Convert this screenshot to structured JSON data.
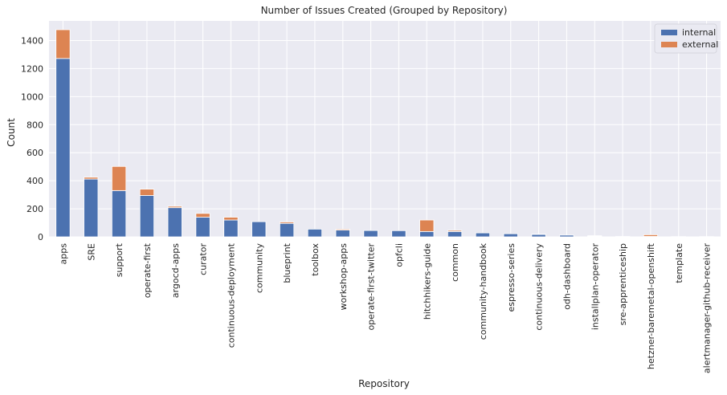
{
  "chart_data": {
    "type": "bar",
    "stacked": true,
    "title": "Number of Issues Created (Grouped by Repository)",
    "xlabel": "Repository",
    "ylabel": "Count",
    "ylim": [
      0,
      1540
    ],
    "yticks": [
      0,
      200,
      400,
      600,
      800,
      1000,
      1200,
      1400
    ],
    "grid": true,
    "legend_position": "top-right",
    "categories": [
      "apps",
      "SRE",
      "support",
      "operate-first",
      "argocd-apps",
      "curator",
      "continuous-deployment",
      "community",
      "blueprint",
      "toolbox",
      "workshop-apps",
      "operate-first-twitter",
      "opfcli",
      "hitchhikers-guide",
      "common",
      "community-handbook",
      "espresso-series",
      "continuous-delivery",
      "odh-dashboard",
      "installplan-operator",
      "sre-apprenticeship",
      "hetzner-baremetal-openshift",
      "template",
      "alertmanager-github-receiver"
    ],
    "series": [
      {
        "name": "internal",
        "color": "#4C72B0",
        "values": [
          1272,
          412,
          330,
          295,
          208,
          140,
          120,
          108,
          96,
          55,
          48,
          45,
          44,
          38,
          38,
          28,
          22,
          18,
          12,
          4,
          3,
          3,
          2,
          2
        ]
      },
      {
        "name": "external",
        "color": "#DD8452",
        "values": [
          205,
          13,
          172,
          45,
          10,
          27,
          20,
          0,
          10,
          0,
          7,
          0,
          0,
          82,
          8,
          0,
          0,
          2,
          0,
          4,
          0,
          12,
          0,
          0
        ]
      }
    ]
  }
}
